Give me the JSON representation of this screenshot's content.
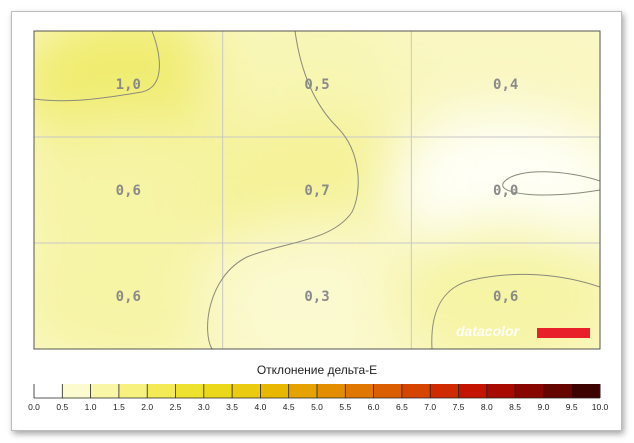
{
  "chart_data": {
    "type": "heatmap",
    "title": "",
    "rows": 3,
    "cols": 3,
    "cells": [
      [
        "1,0",
        "0,5",
        "0,4"
      ],
      [
        "0,6",
        "0,7",
        "0,0"
      ],
      [
        "0,6",
        "0,3",
        "0,6"
      ]
    ],
    "values": [
      [
        1.0,
        0.5,
        0.4
      ],
      [
        0.6,
        0.7,
        0.0
      ],
      [
        0.6,
        0.3,
        0.6
      ]
    ],
    "legend_title": "Отклонение дельта-E",
    "legend_ticks": [
      "0.0",
      "0.5",
      "1.0",
      "1.5",
      "2.0",
      "2.5",
      "3.0",
      "3.5",
      "4.0",
      "4.5",
      "5.0",
      "5.5",
      "6.0",
      "6.5",
      "7.0",
      "7.5",
      "8.0",
      "8.5",
      "9.0",
      "9.5",
      "10.0"
    ],
    "scale_range": [
      0,
      10
    ],
    "colors": [
      "#ffffff",
      "#fcfbd0",
      "#faf6a8",
      "#f7f17f",
      "#f3ea55",
      "#efe22e",
      "#ecd81a",
      "#eacb0f",
      "#e8b800",
      "#e6a300",
      "#e38e00",
      "#df7700",
      "#db5e00",
      "#d64500",
      "#d02b00",
      "#c41400",
      "#a70a00",
      "#870700",
      "#650500",
      "#3d0300",
      "#000000"
    ]
  },
  "brand": {
    "text": "datacolor",
    "accent": "#e8202a"
  }
}
